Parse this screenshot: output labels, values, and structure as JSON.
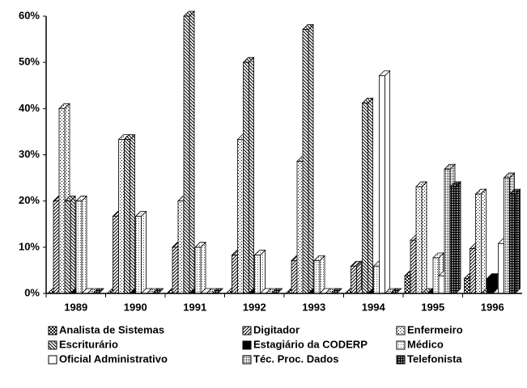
{
  "chart_data": {
    "type": "bar3d",
    "categories": [
      "1989",
      "1990",
      "1991",
      "1992",
      "1993",
      "1994",
      "1995",
      "1996"
    ],
    "series": [
      {
        "name": "Analista de Sistemas",
        "color": "#000000",
        "pattern": "checker",
        "values": [
          0,
          0,
          0,
          0,
          0,
          0,
          3.8,
          3.2
        ]
      },
      {
        "name": "Digitador",
        "color": "#000000",
        "pattern": "diag-right",
        "values": [
          20,
          16.7,
          10,
          8.3,
          7.1,
          5.9,
          11.5,
          9.7
        ]
      },
      {
        "name": "Enfermeiro",
        "color": "#000000",
        "pattern": "dots",
        "values": [
          40,
          33.3,
          20,
          33.3,
          28.6,
          0,
          23.1,
          21.5
        ]
      },
      {
        "name": "Escriturário",
        "color": "#000000",
        "pattern": "diag-left",
        "values": [
          20,
          33.3,
          60,
          50,
          57.1,
          41.2,
          0,
          0
        ]
      },
      {
        "name": "Estagiário da CODERP",
        "color": "#000000",
        "pattern": "solid",
        "values": [
          0,
          0,
          0,
          0,
          0,
          0,
          0,
          3.2
        ]
      },
      {
        "name": "Médico",
        "color": "#000000",
        "pattern": "fine-dots",
        "values": [
          20,
          16.7,
          10,
          8.3,
          7.1,
          5.9,
          7.7,
          0
        ]
      },
      {
        "name": "Oficial Administrativo",
        "color": "#000000",
        "pattern": "none",
        "values": [
          0,
          0,
          0,
          0,
          0,
          47.1,
          3.8,
          10.8
        ]
      },
      {
        "name": "Téc. Proc. Dados",
        "color": "#000000",
        "pattern": "dense-dots",
        "values": [
          0,
          0,
          0,
          0,
          0,
          0,
          26.9,
          25
        ]
      },
      {
        "name": "Telefonista",
        "color": "#000000",
        "pattern": "grid",
        "values": [
          0,
          0,
          0,
          0,
          0,
          0,
          23.1,
          21.5
        ]
      }
    ],
    "ylim": [
      0,
      60
    ],
    "yticks": [
      {
        "value": 0,
        "label": "0%"
      },
      {
        "value": 10,
        "label": "10%"
      },
      {
        "value": 20,
        "label": "20%"
      },
      {
        "value": 30,
        "label": "30%"
      },
      {
        "value": 40,
        "label": "40%"
      },
      {
        "value": 50,
        "label": "50%"
      },
      {
        "value": 60,
        "label": "60%"
      }
    ],
    "legend": "bottom"
  }
}
